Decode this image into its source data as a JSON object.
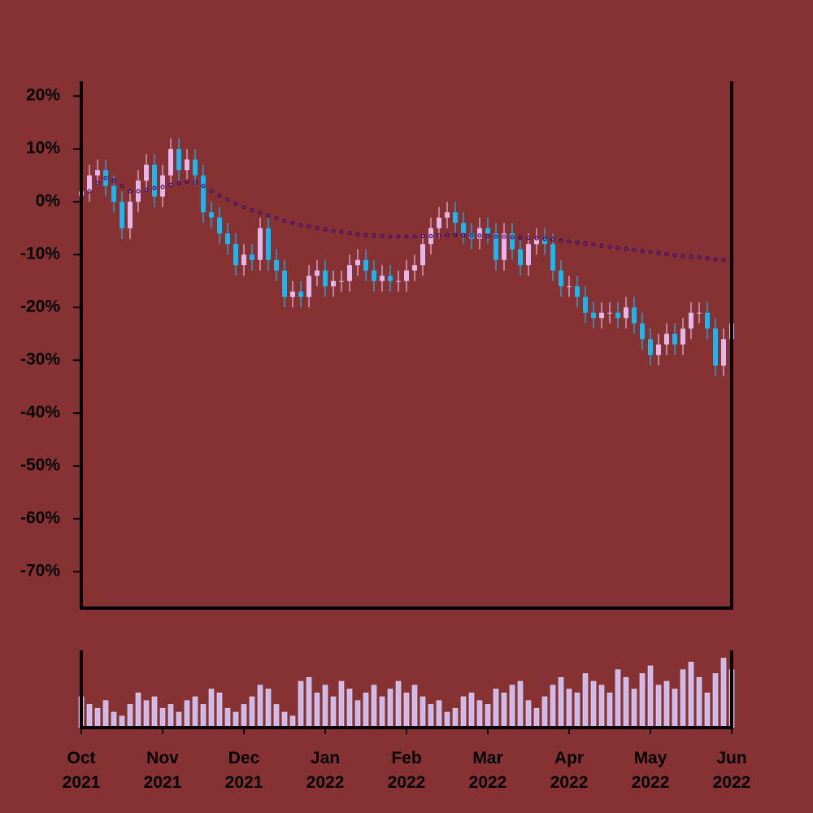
{
  "chart_data": {
    "type": "candlestick",
    "categories": [
      "Oct 2021",
      null,
      null,
      null,
      null,
      null,
      null,
      null,
      null,
      null,
      "Nov 2021",
      null,
      null,
      null,
      null,
      null,
      null,
      null,
      null,
      null,
      "Dec 2021",
      null,
      null,
      null,
      null,
      null,
      null,
      null,
      null,
      null,
      "Jan 2022",
      null,
      null,
      null,
      null,
      null,
      null,
      null,
      null,
      null,
      "Feb 2022",
      null,
      null,
      null,
      null,
      null,
      null,
      null,
      null,
      null,
      "Mar 2022",
      null,
      null,
      null,
      null,
      null,
      null,
      null,
      null,
      null,
      "Apr 2022",
      null,
      null,
      null,
      null,
      null,
      null,
      null,
      null,
      null,
      "May 2022",
      null,
      null,
      null,
      null,
      null,
      null,
      null,
      null,
      null,
      "Jun 2022"
    ],
    "open": [
      1,
      2,
      5,
      6,
      3,
      0,
      -5,
      0,
      4,
      7,
      1,
      5,
      10,
      6,
      8,
      5,
      -2,
      -3,
      -6,
      -8,
      -12,
      -10,
      -11,
      -5,
      -11,
      -13,
      -18,
      -17,
      -18,
      -14,
      -13,
      -16,
      -15,
      -15,
      -12,
      -11,
      -13,
      -15,
      -14,
      -15,
      -15,
      -13,
      -12,
      -8,
      -5,
      -3,
      -2,
      -4,
      -6,
      -7,
      -5,
      -6,
      -11,
      -6,
      -9,
      -12,
      -8,
      -7,
      -8,
      -13,
      -16,
      -16,
      -18,
      -21,
      -22,
      -21,
      -21,
      -22,
      -20,
      -23,
      -26,
      -29,
      -27,
      -25,
      -27,
      -24,
      -21,
      -21,
      -24,
      -31,
      -26
    ],
    "close": [
      2,
      5,
      6,
      3,
      0,
      -5,
      0,
      4,
      7,
      1,
      5,
      10,
      6,
      8,
      5,
      -2,
      -3,
      -6,
      -8,
      -12,
      -10,
      -11,
      -5,
      -11,
      -13,
      -18,
      -17,
      -18,
      -14,
      -13,
      -16,
      -15,
      -15,
      -12,
      -11,
      -13,
      -15,
      -14,
      -15,
      -15,
      -13,
      -12,
      -8,
      -5,
      -3,
      -2,
      -4,
      -6,
      -7,
      -5,
      -6,
      -11,
      -6,
      -9,
      -12,
      -8,
      -7,
      -8,
      -13,
      -16,
      -16,
      -18,
      -21,
      -22,
      -21,
      -21,
      -22,
      -20,
      -23,
      -26,
      -29,
      -27,
      -25,
      -27,
      -24,
      -21,
      -21,
      -24,
      -31,
      -26,
      -23
    ],
    "high": [
      4,
      7,
      8,
      8,
      5,
      2,
      2,
      6,
      9,
      9,
      7,
      12,
      12,
      10,
      10,
      7,
      0,
      -1,
      -4,
      -6,
      -8,
      -8,
      -3,
      -3,
      -9,
      -11,
      -15,
      -15,
      -12,
      -11,
      -11,
      -13,
      -13,
      -10,
      -9,
      -9,
      -11,
      -12,
      -12,
      -13,
      -11,
      -10,
      -6,
      -3,
      -1,
      0,
      0,
      -2,
      -4,
      -3,
      -3,
      -4,
      -4,
      -4,
      -7,
      -6,
      -5,
      -5,
      -6,
      -11,
      -14,
      -14,
      -16,
      -19,
      -19,
      -19,
      -19,
      -18,
      -18,
      -21,
      -24,
      -25,
      -23,
      -23,
      -22,
      -19,
      -19,
      -19,
      -22,
      -24,
      -21
    ],
    "low": [
      -1,
      0,
      3,
      1,
      -2,
      -7,
      -7,
      -2,
      2,
      -1,
      -1,
      3,
      4,
      4,
      3,
      -4,
      -5,
      -8,
      -10,
      -14,
      -14,
      -13,
      -13,
      -13,
      -15,
      -20,
      -20,
      -20,
      -20,
      -16,
      -18,
      -18,
      -17,
      -17,
      -14,
      -15,
      -17,
      -17,
      -17,
      -17,
      -17,
      -15,
      -14,
      -10,
      -7,
      -5,
      -6,
      -8,
      -9,
      -9,
      -8,
      -13,
      -13,
      -11,
      -14,
      -14,
      -10,
      -10,
      -15,
      -18,
      -18,
      -20,
      -23,
      -24,
      -24,
      -23,
      -24,
      -24,
      -25,
      -28,
      -31,
      -31,
      -29,
      -29,
      -29,
      -26,
      -23,
      -26,
      -33,
      -33,
      -28
    ],
    "up_color": "#e4b6ea",
    "down_color": "#1cb6ee",
    "ylim": [
      -76.9,
      22.8
    ],
    "yticks": [
      {
        "value": 20,
        "label": "20%"
      },
      {
        "value": 10,
        "label": "10%"
      },
      {
        "value": 0,
        "label": "0%"
      },
      {
        "value": -10,
        "label": "-10%"
      },
      {
        "value": -20,
        "label": "-20%"
      },
      {
        "value": -30,
        "label": "-30%"
      },
      {
        "value": -40,
        "label": "-40%"
      },
      {
        "value": -50,
        "label": "-50%"
      },
      {
        "value": -60,
        "label": "-60%"
      },
      {
        "value": -70,
        "label": "-70%"
      }
    ],
    "moving_average": {
      "color": "#3a0a78",
      "values": [
        1,
        2,
        3.5,
        4.5,
        4,
        3,
        2,
        2,
        2.3,
        2.6,
        2.8,
        3.2,
        3.5,
        3.8,
        3.6,
        3,
        2,
        1.2,
        0.4,
        -0.3,
        -1,
        -1.6,
        -2.1,
        -2.6,
        -3.1,
        -3.6,
        -4,
        -4.4,
        -4.7,
        -5,
        -5.2,
        -5.5,
        -5.7,
        -5.9,
        -6.1,
        -6.3,
        -6.4,
        -6.5,
        -6.6,
        -6.6,
        -6.6,
        -6.6,
        -6.5,
        -6.5,
        -6.4,
        -6.3,
        -6.3,
        -6.3,
        -6.4,
        -6.4,
        -6.5,
        -6.6,
        -6.6,
        -6.7,
        -6.8,
        -6.8,
        -6.9,
        -7,
        -7.1,
        -7.3,
        -7.5,
        -7.7,
        -7.9,
        -8.1,
        -8.3,
        -8.5,
        -8.7,
        -8.9,
        -9.1,
        -9.3,
        -9.5,
        -9.7,
        -9.9,
        -10.1,
        -10.3,
        -10.4,
        -10.5,
        -10.7,
        -10.9,
        -11,
        -11.2
      ]
    },
    "volume": {
      "color": "#cdb8ea",
      "ylim": [
        0,
        100
      ],
      "values": [
        40,
        30,
        25,
        35,
        20,
        15,
        30,
        45,
        35,
        40,
        25,
        30,
        20,
        35,
        40,
        30,
        50,
        45,
        25,
        20,
        30,
        40,
        55,
        50,
        30,
        20,
        15,
        60,
        65,
        45,
        55,
        40,
        60,
        50,
        35,
        45,
        55,
        40,
        50,
        60,
        45,
        55,
        40,
        30,
        35,
        20,
        25,
        40,
        45,
        35,
        30,
        50,
        45,
        55,
        60,
        35,
        25,
        40,
        55,
        65,
        50,
        45,
        70,
        60,
        55,
        45,
        75,
        65,
        50,
        70,
        80,
        55,
        60,
        50,
        75,
        85,
        65,
        45,
        70,
        90,
        75
      ]
    }
  }
}
